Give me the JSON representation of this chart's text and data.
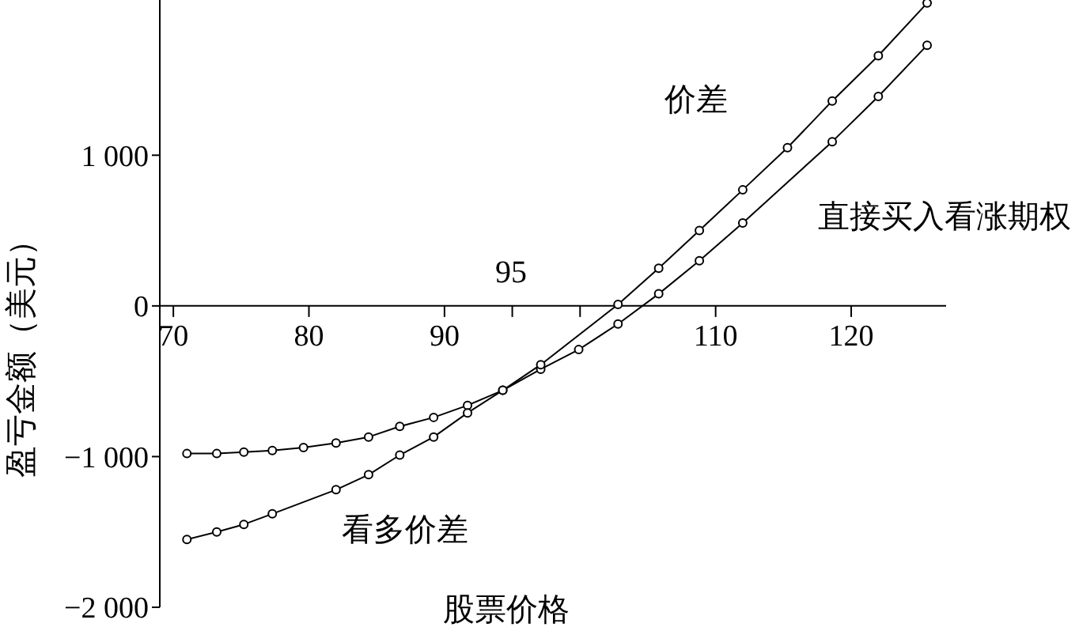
{
  "chart_data": {
    "type": "line",
    "xlabel": "股票价格",
    "ylabel": "盈亏金额（美元）",
    "xlim": [
      69,
      127
    ],
    "ylim": [
      -2000,
      2030
    ],
    "xticks": [
      70,
      80,
      90,
      {
        "value": 95,
        "label": null
      },
      {
        "value": 100,
        "label": null
      },
      110,
      120
    ],
    "yticks": [
      {
        "value": -2000,
        "label": "−2 000"
      },
      {
        "value": -1000,
        "label": "−1 000"
      },
      0,
      {
        "value": 1000,
        "label": "1 000"
      }
    ],
    "series": [
      {
        "color": "#000000",
        "x": [
          71,
          73.2,
          75.2,
          77.3,
          79.6,
          82,
          84.4,
          86.7,
          89.2,
          91.7,
          94.3,
          97.1,
          99.9,
          102.8,
          105.8,
          108.8,
          112,
          118.6,
          122,
          125.6
        ],
        "values": [
          -980,
          -980,
          -970,
          -960,
          -940,
          -910,
          -870,
          -800,
          -740,
          -660,
          -560,
          -420,
          -290,
          -120,
          80,
          300,
          550,
          1090,
          1390,
          1730
        ]
      },
      {
        "color": "#000000",
        "x": [
          71,
          73.2,
          75.2,
          77.3,
          82,
          84.4,
          86.7,
          89.2,
          91.7,
          94.3,
          97.1,
          102.8,
          105.8,
          108.8,
          112,
          115.3,
          118.6,
          122,
          125.6
        ],
        "values": [
          -1550,
          -1500,
          -1450,
          -1380,
          -1220,
          -1120,
          -990,
          -870,
          -710,
          -560,
          -390,
          10,
          250,
          500,
          770,
          1050,
          1360,
          1660,
          2010
        ]
      }
    ],
    "annotations": [
      "95",
      "价差",
      "直接买入看涨期权",
      "看多价差"
    ],
    "marker": "circle",
    "line_style": "solid",
    "grid": false
  }
}
